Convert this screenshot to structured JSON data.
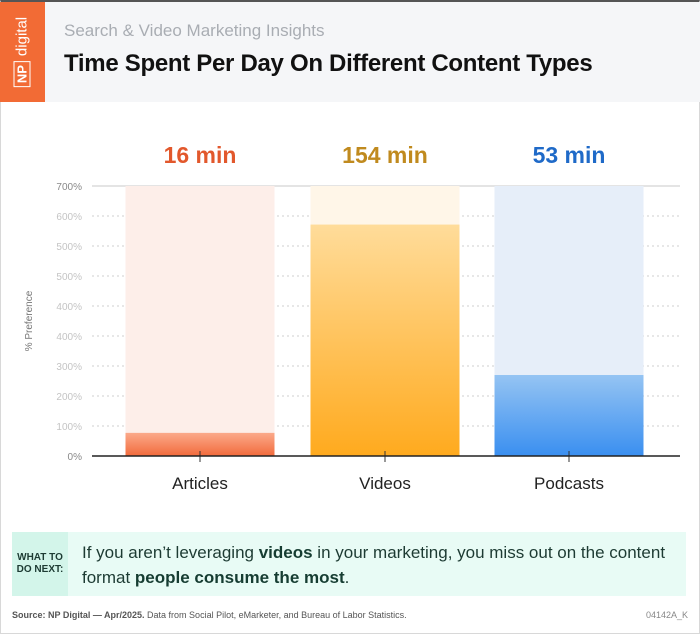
{
  "header": {
    "logo": "NP digital",
    "logo_np": "NP",
    "logo_word": "digital",
    "subtitle": "Search & Video Marketing Insights",
    "title": "Time Spent Per Day On Different Content Types"
  },
  "chart_data": {
    "type": "bar",
    "title": "Time Spent Per Day On Different Content Types",
    "ylabel": "% Preference",
    "xlabel": "",
    "categories": [
      "Articles",
      "Videos",
      "Podcasts"
    ],
    "values": [
      60,
      600,
      210
    ],
    "data_labels": [
      "16 min",
      "154 min",
      "53 min"
    ],
    "ylim": [
      0,
      700
    ],
    "y_tick_labels": [
      "700%",
      "600%",
      "500%",
      "500%",
      "400%",
      "400%",
      "300%",
      "200%",
      "100%",
      "0%"
    ],
    "grid": true,
    "colors": {
      "Articles": {
        "bar_top": "#fba98a",
        "bar_bottom": "#f26b3c",
        "track": "#fdeee9",
        "label": "#e2582c"
      },
      "Videos": {
        "bar_top": "#ffdc9a",
        "bar_bottom": "#ffaa1e",
        "track": "#fff6e8",
        "label": "#c08a1e"
      },
      "Podcasts": {
        "bar_top": "#95c4f3",
        "bar_bottom": "#3a8ff0",
        "track": "#e6eef9",
        "label": "#1f6ac8"
      }
    }
  },
  "note": {
    "tag_line1": "WHAT TO",
    "tag_line2": "DO NEXT:",
    "text_1": "If you aren’t leveraging ",
    "bold_1": "videos",
    "text_2": " in your marketing, you miss out on the content format ",
    "bold_2": "people consume the most",
    "text_3": "."
  },
  "footer": {
    "source_bold": "Source: NP Digital — Apr/2025.",
    "source_text": " Data from Social Pilot, eMarketer, and Bureau of Labor Statistics.",
    "code": "04142A_K"
  }
}
